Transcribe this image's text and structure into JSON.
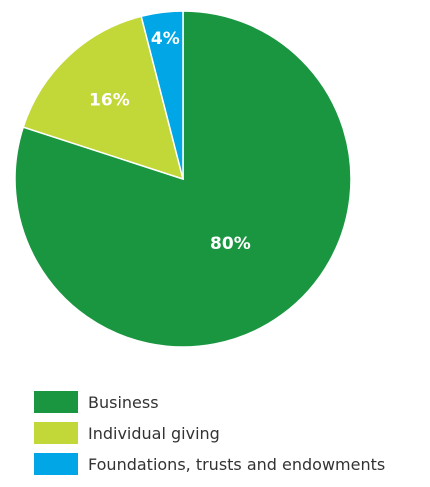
{
  "chart_data": {
    "type": "pie",
    "title": "",
    "start_angle_deg": 0,
    "direction": "clockwise",
    "slices": [
      {
        "label": "Business",
        "value": 80,
        "display": "80%",
        "color": "#1a9641"
      },
      {
        "label": "Individual giving",
        "value": 16,
        "display": "16%",
        "color": "#c2d738"
      },
      {
        "label": "Foundations, trusts and endowments",
        "value": 4,
        "display": "4%",
        "color": "#00a6e6"
      }
    ],
    "legend_position": "bottom-left"
  }
}
